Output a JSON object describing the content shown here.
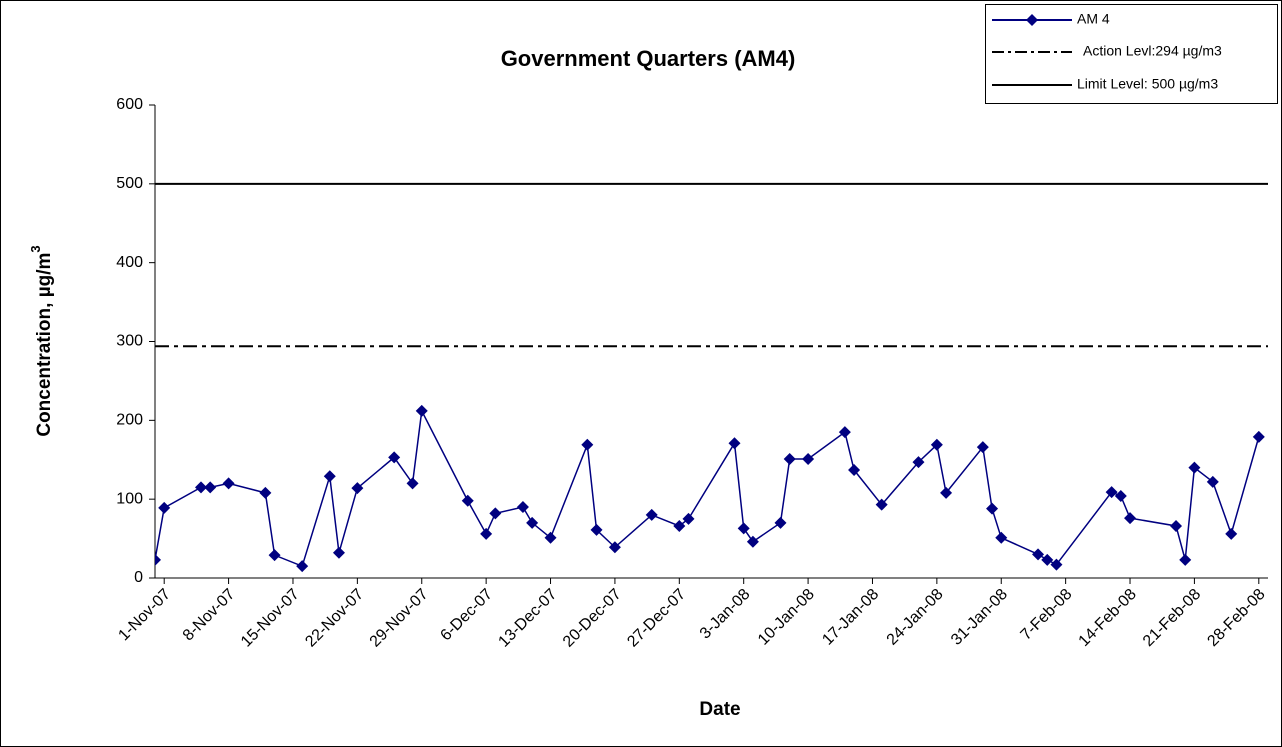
{
  "chart_data": {
    "type": "line",
    "title": "Government Quarters (AM4)",
    "xlabel": "Date",
    "ylabel": {
      "text": "Concentration, µg/m",
      "superscript": "3"
    },
    "legend": "upper right",
    "xlim": [
      "2007-10-31",
      "2008-02-29"
    ],
    "xticks": [
      {
        "value": "2007-11-01",
        "label": "1-Nov-07"
      },
      {
        "value": "2007-11-08",
        "label": "8-Nov-07"
      },
      {
        "value": "2007-11-15",
        "label": "15-Nov-07"
      },
      {
        "value": "2007-11-22",
        "label": "22-Nov-07"
      },
      {
        "value": "2007-11-29",
        "label": "29-Nov-07"
      },
      {
        "value": "2007-12-06",
        "label": "6-Dec-07"
      },
      {
        "value": "2007-12-13",
        "label": "13-Dec-07"
      },
      {
        "value": "2007-12-20",
        "label": "20-Dec-07"
      },
      {
        "value": "2007-12-27",
        "label": "27-Dec-07"
      },
      {
        "value": "2008-01-03",
        "label": "3-Jan-08"
      },
      {
        "value": "2008-01-10",
        "label": "10-Jan-08"
      },
      {
        "value": "2008-01-17",
        "label": "17-Jan-08"
      },
      {
        "value": "2008-01-24",
        "label": "24-Jan-08"
      },
      {
        "value": "2008-01-31",
        "label": "31-Jan-08"
      },
      {
        "value": "2008-02-07",
        "label": "7-Feb-08"
      },
      {
        "value": "2008-02-14",
        "label": "14-Feb-08"
      },
      {
        "value": "2008-02-21",
        "label": "21-Feb-08"
      },
      {
        "value": "2008-02-28",
        "label": "28-Feb-08"
      }
    ],
    "ylim": [
      0,
      600
    ],
    "yticks": [
      0,
      100,
      200,
      300,
      400,
      500,
      600
    ],
    "series": [
      {
        "name": "AM 4",
        "color": "#000080",
        "marker": "diamond",
        "x": [
          "2007-10-31",
          "2007-11-01",
          "2007-11-05",
          "2007-11-06",
          "2007-11-08",
          "2007-11-12",
          "2007-11-13",
          "2007-11-16",
          "2007-11-19",
          "2007-11-20",
          "2007-11-22",
          "2007-11-26",
          "2007-11-28",
          "2007-11-29",
          "2007-12-04",
          "2007-12-06",
          "2007-12-07",
          "2007-12-10",
          "2007-12-11",
          "2007-12-13",
          "2007-12-17",
          "2007-12-18",
          "2007-12-20",
          "2007-12-24",
          "2007-12-27",
          "2007-12-28",
          "2008-01-02",
          "2008-01-03",
          "2008-01-04",
          "2008-01-07",
          "2008-01-08",
          "2008-01-10",
          "2008-01-14",
          "2008-01-15",
          "2008-01-18",
          "2008-01-22",
          "2008-01-24",
          "2008-01-25",
          "2008-01-29",
          "2008-01-30",
          "2008-01-31",
          "2008-02-04",
          "2008-02-05",
          "2008-02-06",
          "2008-02-12",
          "2008-02-13",
          "2008-02-14",
          "2008-02-19",
          "2008-02-20",
          "2008-02-21",
          "2008-02-23",
          "2008-02-25",
          "2008-02-28"
        ],
        "values": [
          23,
          89,
          115,
          115,
          120,
          108,
          29,
          15,
          129,
          32,
          114,
          153,
          120,
          212,
          98,
          56,
          82,
          90,
          70,
          51,
          169,
          61,
          39,
          80,
          66,
          75,
          171,
          63,
          46,
          70,
          151,
          151,
          185,
          137,
          93,
          147,
          169,
          108,
          166,
          88,
          51,
          30,
          23,
          17,
          109,
          104,
          76,
          66,
          23,
          140,
          122,
          56,
          179
        ]
      },
      {
        "name": "Action Levl:294 µg/m3",
        "color": "#000000",
        "dash": "dashdot",
        "value": 294
      },
      {
        "name": "Limit Level: 500 µg/m3",
        "color": "#000000",
        "dash": "solid",
        "value": 500
      }
    ]
  }
}
